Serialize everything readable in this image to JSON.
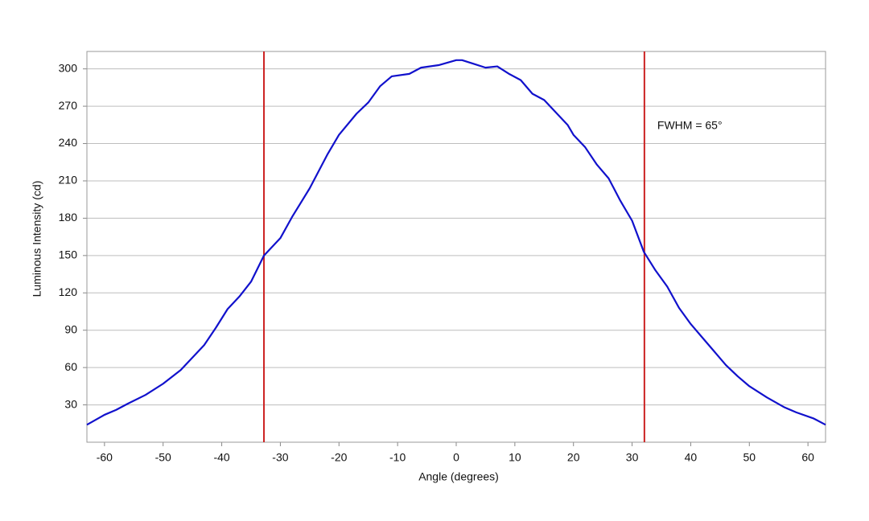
{
  "chart_data": {
    "type": "line",
    "x_label": "Angle (degrees)",
    "y_label": "Luminous Intensity (cd)",
    "x": [
      -63,
      -60,
      -58,
      -56,
      -53,
      -50,
      -47,
      -45,
      -43,
      -41,
      -39,
      -37,
      -35,
      -32.8,
      -30,
      -28,
      -25,
      -22,
      -20,
      -17,
      -15,
      -13,
      -11,
      -8,
      -6,
      -3,
      0,
      1,
      3,
      5,
      7,
      9,
      11,
      13,
      15,
      17,
      19,
      20,
      22,
      24,
      26,
      28,
      30,
      32,
      34,
      36,
      38,
      40,
      42,
      44,
      46,
      48,
      50,
      53,
      56,
      58,
      61,
      63
    ],
    "series": [
      {
        "name": "Luminous Intensity",
        "color": "#1111cc",
        "values": [
          14,
          22,
          26,
          31,
          38,
          47,
          58,
          68,
          78,
          92,
          107,
          117,
          129,
          150,
          164,
          181,
          204,
          231,
          247,
          264,
          273,
          286,
          294,
          296,
          301,
          303,
          307,
          307,
          304,
          301,
          302,
          296,
          291,
          280,
          275,
          265,
          255,
          247,
          237,
          223,
          212,
          194,
          178,
          153,
          138,
          125,
          108,
          95,
          84,
          73,
          62,
          53,
          45,
          36,
          28,
          24,
          19,
          14
        ]
      }
    ],
    "xlim": [
      -63,
      63
    ],
    "ylim": [
      0,
      314
    ],
    "xticks": [
      -60,
      -50,
      -40,
      -30,
      -20,
      -10,
      0,
      10,
      20,
      30,
      40,
      50,
      60
    ],
    "yticks": [
      30,
      60,
      90,
      120,
      150,
      180,
      210,
      240,
      270,
      300
    ],
    "grid": true,
    "vlines": [
      -32.8,
      32.1
    ],
    "vline_color": "#cc2222",
    "annotation": {
      "text": "FWHM = 65°",
      "x": 34.3,
      "y": 254
    }
  }
}
